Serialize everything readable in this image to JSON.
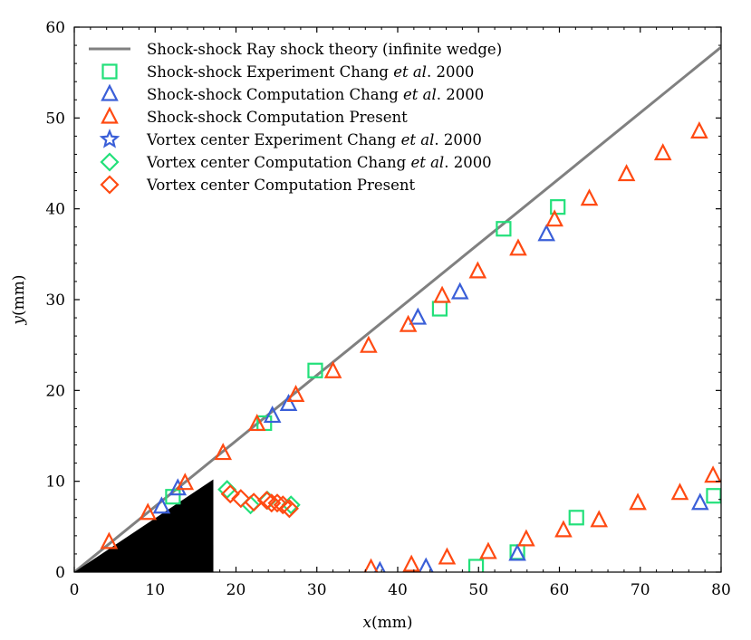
{
  "chart_data": {
    "type": "scatter",
    "xlabel_var": "x",
    "xlabel_unit": "(mm)",
    "ylabel_var": "y",
    "ylabel_unit": "(mm)",
    "xlim": [
      0,
      80
    ],
    "ylim": [
      0,
      60
    ],
    "xticks": [
      0,
      10,
      20,
      30,
      40,
      50,
      60,
      70,
      80
    ],
    "yticks": [
      0,
      10,
      20,
      30,
      40,
      50,
      60
    ],
    "xtick_labels": [
      "0",
      "10",
      "20",
      "30",
      "40",
      "50",
      "60",
      "70",
      "80"
    ],
    "ytick_labels": [
      "0",
      "10",
      "20",
      "30",
      "40",
      "50",
      "60"
    ],
    "grid": false,
    "legend_position": "top-left",
    "colors": {
      "theory": "#808080",
      "green": "#22e07a",
      "blue": "#3a5fd8",
      "orange": "#ff4a12",
      "wedge": "#000000"
    },
    "wedge": {
      "tip_x": 17.2,
      "tip_y": 10.2
    },
    "series": [
      {
        "name": "Shock-shock Ray shock theory (infinite wedge)",
        "marker": "line",
        "color": "#808080",
        "points": [
          [
            0,
            0
          ],
          [
            80,
            57.8
          ]
        ]
      },
      {
        "name": "Shock-shock Experiment Chang et al. 2000",
        "marker": "square",
        "color": "#22e07a",
        "points": [
          [
            12.2,
            8.3
          ],
          [
            23.5,
            16.4
          ],
          [
            29.8,
            22.2
          ],
          [
            45.2,
            29.0
          ],
          [
            53.1,
            37.8
          ],
          [
            59.8,
            40.2
          ],
          [
            49.7,
            0.6
          ],
          [
            54.8,
            2.2
          ],
          [
            62.1,
            6.0
          ],
          [
            79.1,
            8.4
          ]
        ]
      },
      {
        "name": "Shock-shock Computation Chang et al. 2000",
        "marker": "triangle",
        "color": "#3a5fd8",
        "points": [
          [
            10.8,
            7.2
          ],
          [
            12.8,
            9.2
          ],
          [
            24.5,
            17.2
          ],
          [
            26.5,
            18.5
          ],
          [
            42.5,
            28.0
          ],
          [
            47.7,
            30.8
          ],
          [
            58.4,
            37.2
          ],
          [
            37.8,
            0.1
          ],
          [
            43.5,
            0.5
          ],
          [
            54.8,
            2.0
          ],
          [
            77.4,
            7.6
          ]
        ]
      },
      {
        "name": "Shock-shock Computation Present",
        "marker": "triangle",
        "color": "#ff4a12",
        "points": [
          [
            4.3,
            3.3
          ],
          [
            9.1,
            6.5
          ],
          [
            13.7,
            9.8
          ],
          [
            18.4,
            13.1
          ],
          [
            22.6,
            16.3
          ],
          [
            27.4,
            19.5
          ],
          [
            32.0,
            22.1
          ],
          [
            36.4,
            24.9
          ],
          [
            41.3,
            27.2
          ],
          [
            45.5,
            30.4
          ],
          [
            49.9,
            33.1
          ],
          [
            54.9,
            35.6
          ],
          [
            59.4,
            38.8
          ],
          [
            63.7,
            41.1
          ],
          [
            68.3,
            43.8
          ],
          [
            72.8,
            46.1
          ],
          [
            77.3,
            48.5
          ],
          [
            36.7,
            0.4
          ],
          [
            41.7,
            0.8
          ],
          [
            46.1,
            1.6
          ],
          [
            51.2,
            2.2
          ],
          [
            55.9,
            3.6
          ],
          [
            60.5,
            4.6
          ],
          [
            64.9,
            5.7
          ],
          [
            69.7,
            7.6
          ],
          [
            74.9,
            8.7
          ],
          [
            79.0,
            10.6
          ]
        ]
      },
      {
        "name": "Vortex center Experiment Chang et al. 2000",
        "marker": "star",
        "color": "#3a5fd8",
        "points": []
      },
      {
        "name": "Vortex center Computation Chang et al. 2000",
        "marker": "diamond",
        "color": "#22e07a",
        "points": [
          [
            18.9,
            9.1
          ],
          [
            21.8,
            7.4
          ],
          [
            23.9,
            7.9
          ],
          [
            26.8,
            7.4
          ]
        ]
      },
      {
        "name": "Vortex center Computation Present",
        "marker": "diamond",
        "color": "#ff4a12",
        "points": [
          [
            19.3,
            8.6
          ],
          [
            20.6,
            8.1
          ],
          [
            22.2,
            7.7
          ],
          [
            23.8,
            7.9
          ],
          [
            24.4,
            7.6
          ],
          [
            25.1,
            7.6
          ],
          [
            25.8,
            7.4
          ],
          [
            26.6,
            7.0
          ]
        ]
      }
    ],
    "legend": [
      {
        "prefix": "Shock-shock Ray shock theory (infinite wedge)",
        "italic": "",
        "suffix": ""
      },
      {
        "prefix": "Shock-shock Experiment Chang ",
        "italic": "et al",
        "suffix": ". 2000"
      },
      {
        "prefix": "Shock-shock Computation Chang ",
        "italic": "et al",
        "suffix": ". 2000"
      },
      {
        "prefix": "Shock-shock Computation Present",
        "italic": "",
        "suffix": ""
      },
      {
        "prefix": "Vortex center Experiment Chang ",
        "italic": "et al",
        "suffix": ". 2000"
      },
      {
        "prefix": "Vortex center Computation Chang ",
        "italic": "et al",
        "suffix": ". 2000"
      },
      {
        "prefix": "Vortex center Computation Present",
        "italic": "",
        "suffix": ""
      }
    ]
  }
}
